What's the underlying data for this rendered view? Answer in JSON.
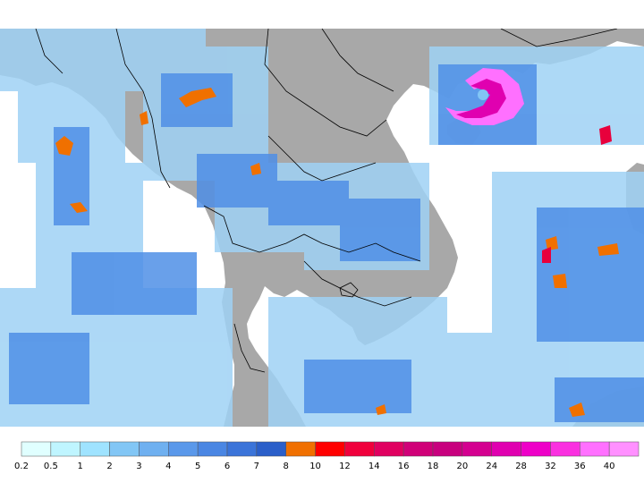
{
  "map": {
    "land_color": "#a8a8a8",
    "ocean_color": "#ffffff",
    "border_color": "#000000"
  },
  "legend": {
    "colors": [
      "#e0ffff",
      "#bff5ff",
      "#9fe3ff",
      "#82c6f5",
      "#6fb0f0",
      "#5a98ea",
      "#4a86e3",
      "#3b74d9",
      "#2b5fc9",
      "#f07000",
      "#ff0000",
      "#f0003c",
      "#e00060",
      "#d00078",
      "#c8007e",
      "#d40090",
      "#e000b0",
      "#ee00c8",
      "#fa30e0",
      "#ff70ff",
      "#ff90ff"
    ],
    "labels": [
      "0.2",
      "0.5",
      "1",
      "2",
      "3",
      "4",
      "5",
      "6",
      "7",
      "8",
      "10",
      "12",
      "14",
      "16",
      "18",
      "20",
      "24",
      "28",
      "32",
      "36",
      "40"
    ]
  }
}
